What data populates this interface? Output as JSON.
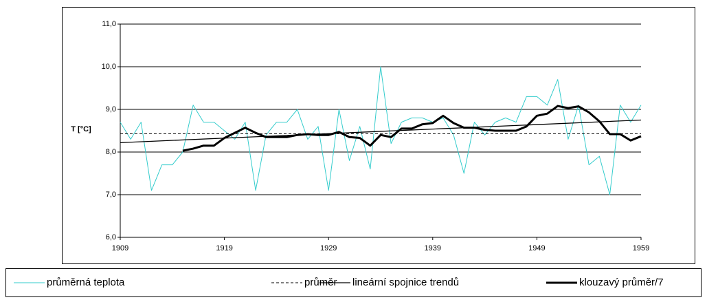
{
  "chart_data": {
    "type": "line",
    "ylabel": "T [°C]",
    "x": [
      1909,
      1910,
      1911,
      1912,
      1913,
      1914,
      1915,
      1916,
      1917,
      1918,
      1919,
      1920,
      1921,
      1922,
      1923,
      1924,
      1925,
      1926,
      1927,
      1928,
      1929,
      1930,
      1931,
      1932,
      1933,
      1934,
      1935,
      1936,
      1937,
      1938,
      1939,
      1940,
      1941,
      1942,
      1943,
      1944,
      1945,
      1946,
      1947,
      1948,
      1949,
      1950,
      1951,
      1952,
      1953,
      1954,
      1955,
      1956,
      1957,
      1958,
      1959
    ],
    "series": [
      {
        "name": "průměrná teplota",
        "color": "#33cccc",
        "width": 1,
        "values": [
          8.7,
          8.3,
          8.7,
          7.1,
          7.7,
          7.7,
          8.0,
          9.1,
          8.7,
          8.7,
          8.5,
          8.3,
          8.7,
          7.1,
          8.4,
          8.7,
          8.7,
          9.0,
          8.3,
          8.6,
          7.1,
          9.0,
          7.8,
          8.6,
          7.6,
          10.0,
          8.2,
          8.7,
          8.8,
          8.8,
          8.7,
          8.8,
          8.4,
          7.5,
          8.7,
          8.4,
          8.7,
          8.8,
          8.7,
          9.3,
          9.3,
          9.1,
          9.7,
          8.3,
          9.1,
          7.7,
          7.9,
          7.0,
          9.1,
          8.7,
          9.1
        ]
      },
      {
        "name": "průměr",
        "color": "#000000",
        "width": 1,
        "dash": "4 3",
        "x": [
          1909,
          1959
        ],
        "values": [
          8.43,
          8.43
        ]
      },
      {
        "name": "lineární spojnice trendů",
        "color": "#000000",
        "width": 1.3,
        "x": [
          1909,
          1959
        ],
        "values": [
          8.22,
          8.75
        ]
      },
      {
        "name": "klouzavý průměr/7",
        "color": "#000000",
        "width": 3,
        "values": [
          null,
          null,
          null,
          null,
          null,
          null,
          8.03,
          8.08,
          8.15,
          8.15,
          8.33,
          8.45,
          8.57,
          8.45,
          8.35,
          8.35,
          8.35,
          8.4,
          8.42,
          8.4,
          8.4,
          8.47,
          8.35,
          8.33,
          8.15,
          8.4,
          8.35,
          8.55,
          8.55,
          8.65,
          8.68,
          8.85,
          8.68,
          8.57,
          8.57,
          8.52,
          8.5,
          8.5,
          8.5,
          8.6,
          8.85,
          8.9,
          9.08,
          9.03,
          9.07,
          8.93,
          8.72,
          8.42,
          8.42,
          8.27,
          8.37
        ]
      }
    ],
    "xlim": [
      1909,
      1959
    ],
    "xticks": [
      1909,
      1919,
      1929,
      1939,
      1949,
      1959
    ],
    "ylim": [
      6,
      11
    ],
    "yticks": [
      {
        "value": 6,
        "label": "6,0"
      },
      {
        "value": 7,
        "label": "7,0"
      },
      {
        "value": 8,
        "label": "8,0"
      },
      {
        "value": 9,
        "label": "9,0"
      },
      {
        "value": 10,
        "label": "10,0"
      },
      {
        "value": 11,
        "label": "11,0"
      }
    ],
    "grid": true
  }
}
